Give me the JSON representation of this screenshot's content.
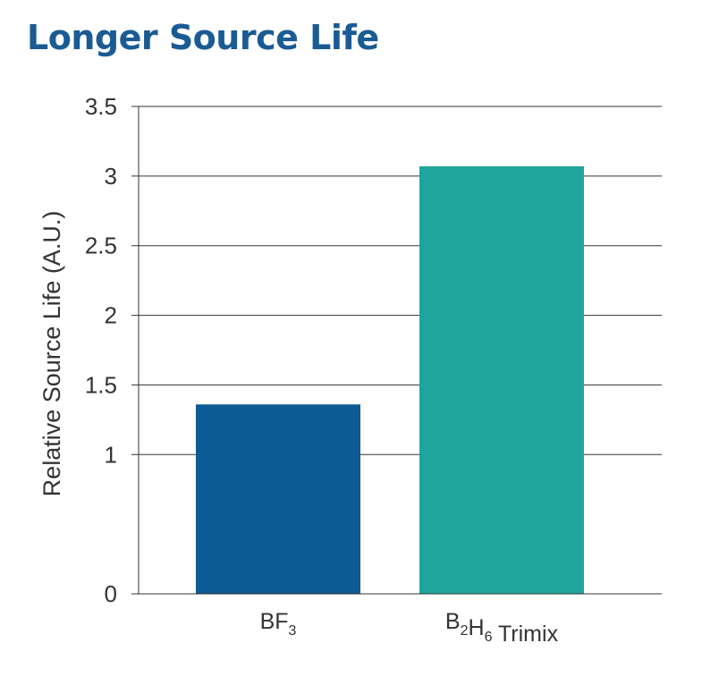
{
  "chart_data": {
    "type": "bar",
    "title": "Longer Source Life",
    "ylabel": "Relative Source Life (A.U.)",
    "xlabel": "",
    "ylim": [
      0,
      3.5
    ],
    "yticks": [
      "0",
      "1",
      "1.5",
      "2",
      "2.5",
      "3",
      "3.5"
    ],
    "ytick_values": [
      0,
      1,
      1.5,
      2,
      2.5,
      3,
      3.5
    ],
    "grid": "horizontal",
    "categories": [
      {
        "base": "BF",
        "sub": "3",
        "label": "BF3"
      },
      {
        "base": "B",
        "sub": "2",
        "mid": "H",
        "sub2": "6",
        "tail": " Trimix",
        "label": "B2H6 Trimix"
      }
    ],
    "values": [
      1.36,
      3.07
    ],
    "colors": [
      "#0e5a94",
      "#1fa59c"
    ],
    "gridColor": "#333333",
    "axisColor": "#333333"
  }
}
